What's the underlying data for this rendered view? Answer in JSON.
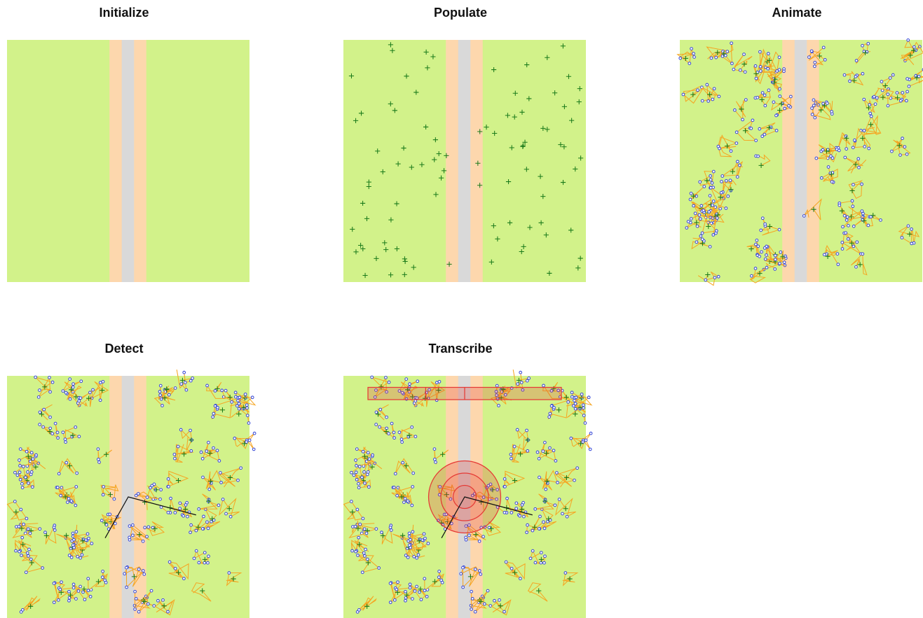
{
  "panels": [
    {
      "id": "initialize",
      "title": "Initialize",
      "stage": 1
    },
    {
      "id": "populate",
      "title": "Populate",
      "stage": 2
    },
    {
      "id": "animate",
      "title": "Animate",
      "stage": 3
    },
    {
      "id": "detect",
      "title": "Detect",
      "stage": 4
    },
    {
      "id": "transcribe",
      "title": "Transcribe",
      "stage": 5
    }
  ],
  "colors": {
    "habitat": "#d2f28a",
    "verge": "#fdd7ad",
    "road": "#d9d9d9",
    "plant": "#1a7a1a",
    "track": "#f5a623",
    "point": "#3a4bd8",
    "line": "#111111",
    "survey": "#e53935"
  },
  "icons": {
    "plant": "plus-marker",
    "point": "circle-marker"
  }
}
